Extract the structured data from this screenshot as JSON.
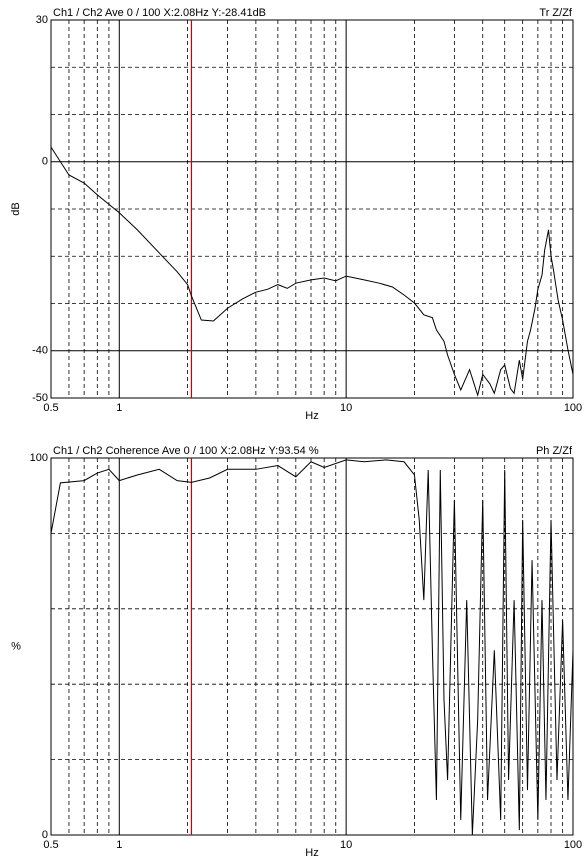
{
  "chart_data": [
    {
      "type": "line",
      "header_left": "Ch1 / Ch2  Ave 0 / 100  X:2.08Hz  Y:-28.41dB",
      "header_right": "Tr Z/Zf",
      "ylabel": "dB",
      "xlabel": "Hz",
      "log_x": true,
      "grid": true,
      "color": "#000000",
      "cursor_x": 2.08,
      "cursor_color": "#cc0000",
      "xlim": [
        0.5,
        100
      ],
      "ylim": [
        -50,
        30
      ],
      "xticks": [
        0.5,
        1,
        10,
        100
      ],
      "x_minor_ticks": [
        0.6,
        0.7,
        0.8,
        0.9,
        2,
        3,
        4,
        5,
        6,
        7,
        8,
        9,
        20,
        30,
        40,
        50,
        60,
        70,
        80,
        90
      ],
      "yticks": [
        30,
        0,
        -40,
        -50
      ],
      "y_minor_ticks": [
        20,
        10,
        -10,
        -20,
        -30
      ],
      "x": [
        0.5,
        0.6,
        0.7,
        0.8,
        1.0,
        1.2,
        1.5,
        1.8,
        2.0,
        2.08,
        2.3,
        2.6,
        3,
        3.5,
        4,
        4.5,
        5,
        5.5,
        6,
        7,
        8,
        9,
        10,
        12,
        14,
        16,
        18,
        20,
        22,
        24,
        25,
        27,
        28,
        30,
        32,
        35,
        38,
        40,
        43,
        45,
        48,
        50,
        53,
        55,
        58,
        60,
        63,
        65,
        68,
        70,
        73,
        75,
        78,
        80,
        82,
        86,
        90,
        95,
        100
      ],
      "values": [
        3.1,
        -2.8,
        -4.5,
        -7,
        -10.8,
        -14.4,
        -19.3,
        -23.3,
        -26,
        -28.41,
        -33.5,
        -33.7,
        -31,
        -29,
        -27.6,
        -27,
        -26,
        -26.8,
        -25.7,
        -25,
        -24.6,
        -25.2,
        -24.2,
        -25,
        -25.7,
        -26.5,
        -28.2,
        -29.9,
        -32.4,
        -33,
        -35.6,
        -38,
        -40.9,
        -45,
        -48.3,
        -44,
        -49.4,
        -45,
        -47,
        -49,
        -44,
        -43,
        -48,
        -49,
        -42,
        -46,
        -38,
        -35.6,
        -31,
        -27,
        -24,
        -18.7,
        -14.4,
        -20,
        -22.9,
        -29.3,
        -33.5,
        -39.8,
        -45
      ]
    },
    {
      "type": "line",
      "header_left": "Ch1 / Ch2  Coherence Ave 0 / 100  X:2.08Hz  Y:93.54 %",
      "header_right": "Ph Z/Zf",
      "ylabel": "%",
      "xlabel": "Hz",
      "log_x": true,
      "grid": true,
      "color": "#000000",
      "cursor_x": 2.08,
      "cursor_color": "#cc0000",
      "xlim": [
        0.5,
        100
      ],
      "ylim": [
        0,
        100
      ],
      "xticks": [
        0.5,
        1,
        10,
        100
      ],
      "x_minor_ticks": [
        0.6,
        0.7,
        0.8,
        0.9,
        2,
        3,
        4,
        5,
        6,
        7,
        8,
        9,
        20,
        30,
        40,
        50,
        60,
        70,
        80,
        90
      ],
      "yticks": [
        100,
        0
      ],
      "y_minor_ticks": [
        80,
        60,
        40,
        20
      ],
      "x": [
        0.5,
        0.55,
        0.7,
        0.8,
        0.9,
        1.0,
        1.2,
        1.5,
        1.8,
        2.08,
        2.5,
        3,
        4,
        5,
        6,
        7,
        8,
        10,
        12,
        15,
        18,
        20,
        21,
        22,
        23,
        24,
        25,
        26,
        27,
        28,
        30,
        32,
        34,
        36,
        38,
        40,
        42,
        45,
        48,
        50,
        52,
        55,
        58,
        60,
        63,
        66,
        70,
        73,
        76,
        80,
        85,
        90,
        95,
        100
      ],
      "values": [
        80,
        93.4,
        94,
        96,
        97,
        94,
        95.5,
        97,
        94,
        93.54,
        94.7,
        97,
        97,
        98,
        95,
        99,
        97.5,
        99.5,
        99,
        99.5,
        99,
        95.5,
        83.6,
        62.3,
        96.8,
        49,
        9.3,
        96.8,
        35.8,
        14.6,
        88.9,
        4,
        62.3,
        0,
        30.5,
        88.9,
        9.3,
        49,
        4,
        96.8,
        14.6,
        62.3,
        1.3,
        83.6,
        11.9,
        72.9,
        4,
        62.3,
        9.3,
        83.6,
        14.6,
        57,
        9.3,
        49
      ]
    }
  ]
}
